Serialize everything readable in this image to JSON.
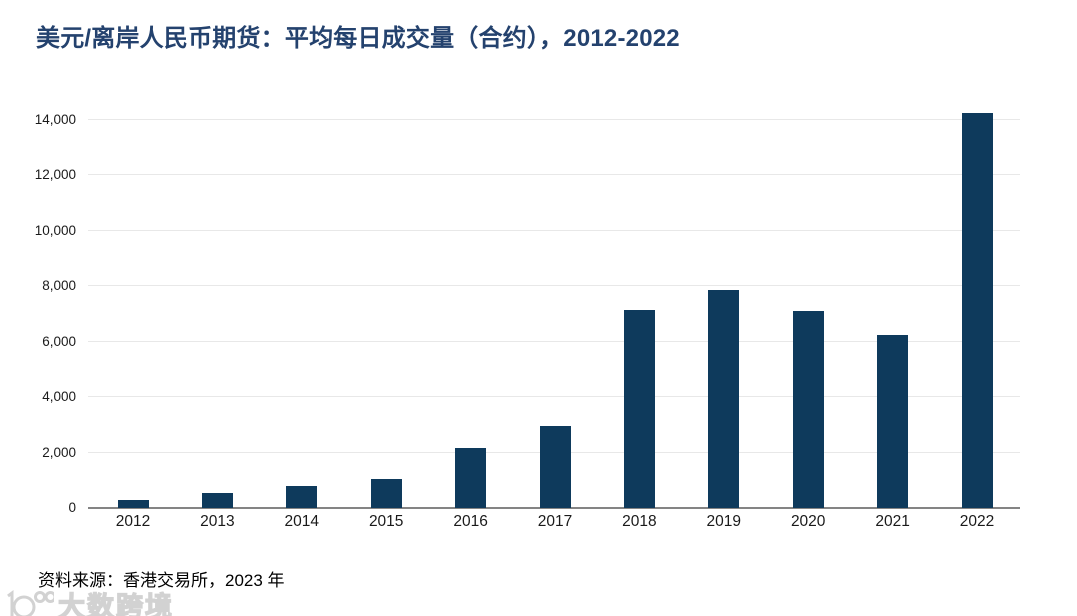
{
  "source_note": "资料来源：香港交易所，2023 年",
  "watermark": {
    "text": "大数跨境"
  },
  "colors": {
    "bar": "#0e3a5c",
    "title": "#24426e",
    "gridline": "#e8e8e8",
    "axis_line": "#848484",
    "tick_text": "#1a1a1a",
    "watermark": "#d2d2d2"
  },
  "chart_data": {
    "type": "bar",
    "title": "美元/离岸人民币期货：平均每日成交量（合约），2012-2022",
    "categories": [
      "2012",
      "2013",
      "2014",
      "2015",
      "2016",
      "2017",
      "2018",
      "2019",
      "2020",
      "2021",
      "2022"
    ],
    "values": [
      300,
      550,
      800,
      1050,
      2150,
      2950,
      7150,
      7850,
      7100,
      6250,
      14250
    ],
    "xlabel": "",
    "ylabel": "",
    "ylim": [
      0,
      14000
    ],
    "ytick_step": 2000,
    "ytick_labels": [
      "0",
      "2,000",
      "4,000",
      "6,000",
      "8,000",
      "10,000",
      "12,000",
      "14,000"
    ],
    "grid": true,
    "legend": "none",
    "series_name": "平均每日成交量（合约）"
  }
}
